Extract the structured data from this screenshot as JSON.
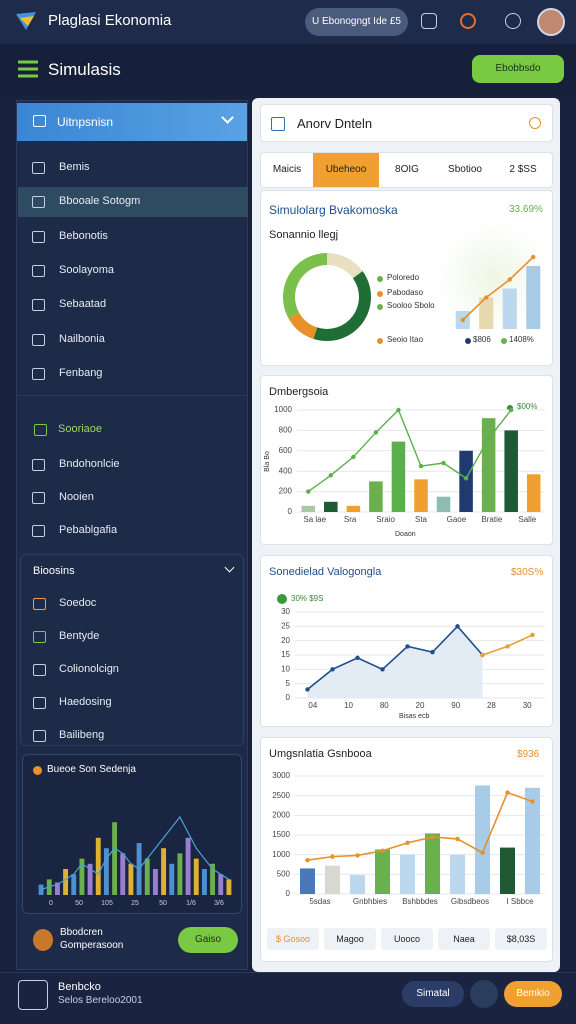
{
  "topbar": {
    "title": "Plaglasi Ekonomia",
    "pill": "U Ebonogngt Ide £5"
  },
  "subbar": {
    "title": "Simulasis",
    "button": "Ebobbsdo"
  },
  "sidebar": {
    "header": "Uitnpsnisn",
    "items": [
      "Bemis",
      "Bbooale Sotogm",
      "Bebonotis",
      "Soolayoma",
      "Sebaatad",
      "Nailbonia",
      "Fenbang"
    ],
    "section_title": "Sooriaoe",
    "section_items": [
      "Bndohonlcie",
      "Nooien",
      "Pebablgafia"
    ],
    "panel_title": "Bioosins",
    "panel_items": [
      "Soedoc",
      "Bentyde",
      "Colionolcign",
      "Haedosing",
      "Bailibeng"
    ],
    "mini_chart": {
      "title": "Bueoe Son Sedenja",
      "ylim": [
        0,
        100
      ],
      "bars": {
        "values": [
          10,
          15,
          12,
          25,
          20,
          35,
          30,
          55,
          45,
          70,
          40,
          30,
          50,
          35,
          25,
          45,
          30,
          40,
          55,
          35,
          25,
          30,
          20,
          15
        ],
        "colors": [
          "#4f8fd0",
          "#6ab04c",
          "#9a7fd0",
          "#e0b030"
        ]
      },
      "lines": [
        {
          "values": [
            5,
            8,
            10,
            15,
            20,
            30,
            25,
            20,
            35,
            45,
            40,
            30,
            25,
            35,
            45,
            55,
            65,
            75,
            60,
            45,
            35,
            25,
            20,
            15
          ],
          "color": "#4aa3d8"
        }
      ],
      "xlabels": [
        "0",
        "50",
        "105",
        "25",
        "50",
        "1/6",
        "3/6"
      ]
    },
    "card": {
      "title": "Bbodcren",
      "subtitle": "Gomperasoon",
      "button": "Gaiso"
    }
  },
  "footer": {
    "title": "Benbcko",
    "subtitle": "Selos Bereloo2001",
    "button_left": "Simatal",
    "button_right": "Bemkio"
  },
  "main": {
    "header_title": "Anorv Dnteln",
    "tabs": [
      "Maicis",
      "Ubeheoo",
      "8OIG",
      "Sbotioo",
      "2 $SS"
    ],
    "sim_card": {
      "title": "Simulolarg Bvakomoska",
      "value": "33.69%",
      "subtitle": "Sonannio llegj",
      "donut": {
        "values": [
          15,
          40,
          12,
          33
        ],
        "colors": [
          "#e8e0c0",
          "#1f6e35",
          "#e8902a",
          "#7cc04c"
        ]
      },
      "legend": [
        {
          "label": "Poloredo",
          "color": "#6ab04c"
        },
        {
          "label": "Pabodaso",
          "color": "#e8902a"
        },
        {
          "label": "Sooloo Sbolo",
          "color": "#6ab04c"
        },
        {
          "label": "Seoio Itao",
          "color": "#e8902a"
        }
      ],
      "chart": {
        "ylim": [
          0,
          100
        ],
        "bars": {
          "values": [
            20,
            35,
            45,
            70
          ],
          "colors": [
            "#bcd8ee",
            "#e8d8b0",
            "#bcd8ee",
            "#a8cce8"
          ]
        },
        "lines": [
          {
            "values": [
              10,
              35,
              55,
              80
            ],
            "color": "#e8902a"
          }
        ]
      },
      "notes": [
        {
          "label": "$806",
          "color": "#1e3a6e"
        },
        {
          "label": "1408%",
          "color": "#6ab04c"
        }
      ]
    },
    "bar_card": {
      "title": "Dmbergsoia",
      "legend": "$00%",
      "ylabel": "Bla Bo",
      "xlabel": "Doaon",
      "ylim": [
        0,
        1000
      ],
      "yticks": [
        0,
        200,
        400,
        600,
        800,
        1000
      ],
      "bars": {
        "values": [
          60,
          100,
          60,
          300,
          690,
          320,
          150,
          600,
          920,
          800,
          370
        ],
        "colors": [
          "#a9c7a0",
          "#1f5a35",
          "#f0a030",
          "#6ab04c",
          "#5bb04b",
          "#f0a030",
          "#8fbcb0",
          "#1e3a6e",
          "#6ab04c",
          "#1f5a35",
          "#f0a030"
        ]
      },
      "lines": [
        {
          "values": [
            200,
            360,
            540,
            780,
            1000,
            450,
            480,
            330,
            720,
            1000,
            null
          ],
          "color": "#5bb04b"
        }
      ],
      "xlabels": [
        "Sa lae",
        "Sra",
        "Sraio",
        "Sta",
        "Gaoe",
        "Bratie",
        "Salle"
      ]
    },
    "line_card": {
      "title": "Sonedielad Valogongla",
      "value": "$30S%",
      "legend": "30% $9S",
      "xlabel": "Bisas ecb",
      "ylim": [
        0,
        30
      ],
      "yticks": [
        0,
        5,
        10,
        15,
        20,
        25,
        30
      ],
      "area": true,
      "lines": [
        {
          "values": [
            3,
            10,
            14,
            10,
            18,
            16,
            25,
            15,
            null,
            null
          ],
          "color": "#1e4f8a"
        },
        {
          "values": [
            null,
            null,
            null,
            null,
            null,
            null,
            null,
            15,
            18,
            22
          ],
          "color": "#e8a030"
        }
      ],
      "xlabels": [
        "04",
        "10",
        "80",
        "20",
        "90",
        "28",
        "30"
      ]
    },
    "combo_card": {
      "title": "Umgsnlatia Gsnbooa",
      "value": "$936",
      "ylim": [
        0,
        3000
      ],
      "yticks": [
        0,
        500,
        1000,
        1500,
        2000,
        2500,
        3000
      ],
      "bars": {
        "values": [
          650,
          720,
          480,
          1130,
          1000,
          1540,
          1000,
          2760,
          1180,
          2700
        ],
        "colors": [
          "#4a78b8",
          "#d8d8d0",
          "#bcd8ee",
          "#6ab04c",
          "#bcd8ee",
          "#6ab04c",
          "#bcd8ee",
          "#a8cce8",
          "#1f5a35",
          "#a8cce8"
        ]
      },
      "lines": [
        {
          "values": [
            860,
            950,
            980,
            1100,
            1300,
            1450,
            1400,
            1050,
            2580,
            2350
          ],
          "color": "#e8902a"
        }
      ],
      "xlabels": [
        "5sdas",
        "Gnbhbies",
        "Bshbbdes",
        "Gibsdbeos",
        "I Sbbce"
      ],
      "stats": [
        "$ Gosoo",
        "Magoo",
        "Uooco",
        "Naea",
        "$8,03S"
      ]
    }
  }
}
